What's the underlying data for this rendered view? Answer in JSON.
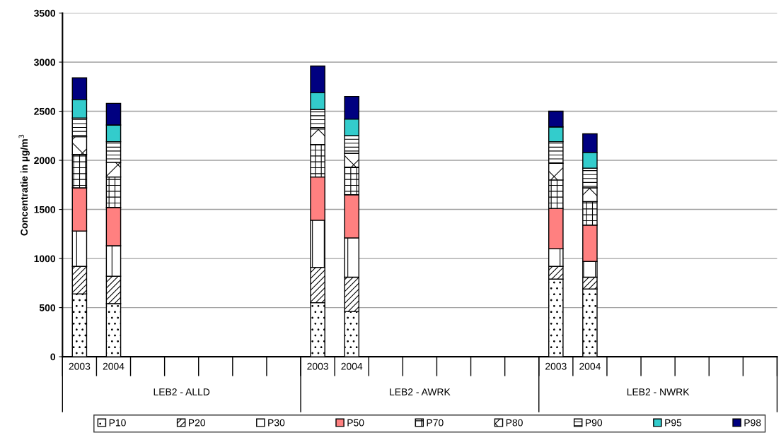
{
  "chart_data": {
    "type": "bar",
    "stacked": true,
    "ylabel": "Concentratie in µg/m$^{3}$",
    "categories": [
      "2003",
      "2004",
      null,
      null,
      null,
      null,
      null,
      "2003",
      "2004",
      null,
      null,
      null,
      null,
      null,
      "2003",
      "2004",
      null,
      null,
      null,
      null,
      null
    ],
    "annotations": [
      "LEB2 - ALLD",
      "LEB2 - AWRK",
      "LEB2 - NWRK"
    ],
    "ylim": [
      0,
      3500
    ],
    "yticks": [
      0,
      500,
      1000,
      1500,
      2000,
      2500,
      3000,
      3500
    ],
    "grid": "y",
    "legend": "bottom",
    "series": [
      {
        "name": "P10",
        "color": "#000000",
        "values": [
          640,
          540,
          null,
          null,
          null,
          null,
          null,
          550,
          460,
          null,
          null,
          null,
          null,
          null,
          790,
          690,
          null,
          null,
          null,
          null,
          null
        ]
      },
      {
        "name": "P20",
        "color": "#000000",
        "values": [
          280,
          280,
          null,
          null,
          null,
          null,
          null,
          360,
          350,
          null,
          null,
          null,
          null,
          null,
          130,
          120,
          null,
          null,
          null,
          null,
          null
        ]
      },
      {
        "name": "P30",
        "color": "#000000",
        "values": [
          360,
          310,
          null,
          null,
          null,
          null,
          null,
          480,
          400,
          null,
          null,
          null,
          null,
          null,
          180,
          160,
          null,
          null,
          null,
          null,
          null
        ]
      },
      {
        "name": "P50",
        "color": "#ff8080",
        "values": [
          440,
          390,
          null,
          null,
          null,
          null,
          null,
          440,
          440,
          null,
          null,
          null,
          null,
          null,
          410,
          370,
          null,
          null,
          null,
          null,
          null
        ]
      },
      {
        "name": "P70",
        "color": "#000000",
        "values": [
          340,
          310,
          null,
          null,
          null,
          null,
          null,
          330,
          280,
          null,
          null,
          null,
          null,
          null,
          290,
          240,
          null,
          null,
          null,
          null,
          null
        ]
      },
      {
        "name": "P80",
        "color": "#000000",
        "values": [
          180,
          150,
          null,
          null,
          null,
          null,
          null,
          160,
          140,
          null,
          null,
          null,
          null,
          null,
          170,
          140,
          null,
          null,
          null,
          null,
          null
        ]
      },
      {
        "name": "P90",
        "color": "#000000",
        "values": [
          190,
          210,
          null,
          null,
          null,
          null,
          null,
          200,
          180,
          null,
          null,
          null,
          null,
          null,
          220,
          200,
          null,
          null,
          null,
          null,
          null
        ]
      },
      {
        "name": "P95",
        "color": "#33cccc",
        "values": [
          190,
          170,
          null,
          null,
          null,
          null,
          null,
          170,
          170,
          null,
          null,
          null,
          null,
          null,
          150,
          160,
          null,
          null,
          null,
          null,
          null
        ]
      },
      {
        "name": "P98",
        "color": "#000080",
        "values": [
          220,
          220,
          null,
          null,
          null,
          null,
          null,
          270,
          230,
          null,
          null,
          null,
          null,
          null,
          160,
          190,
          null,
          null,
          null,
          null,
          null
        ]
      }
    ]
  }
}
